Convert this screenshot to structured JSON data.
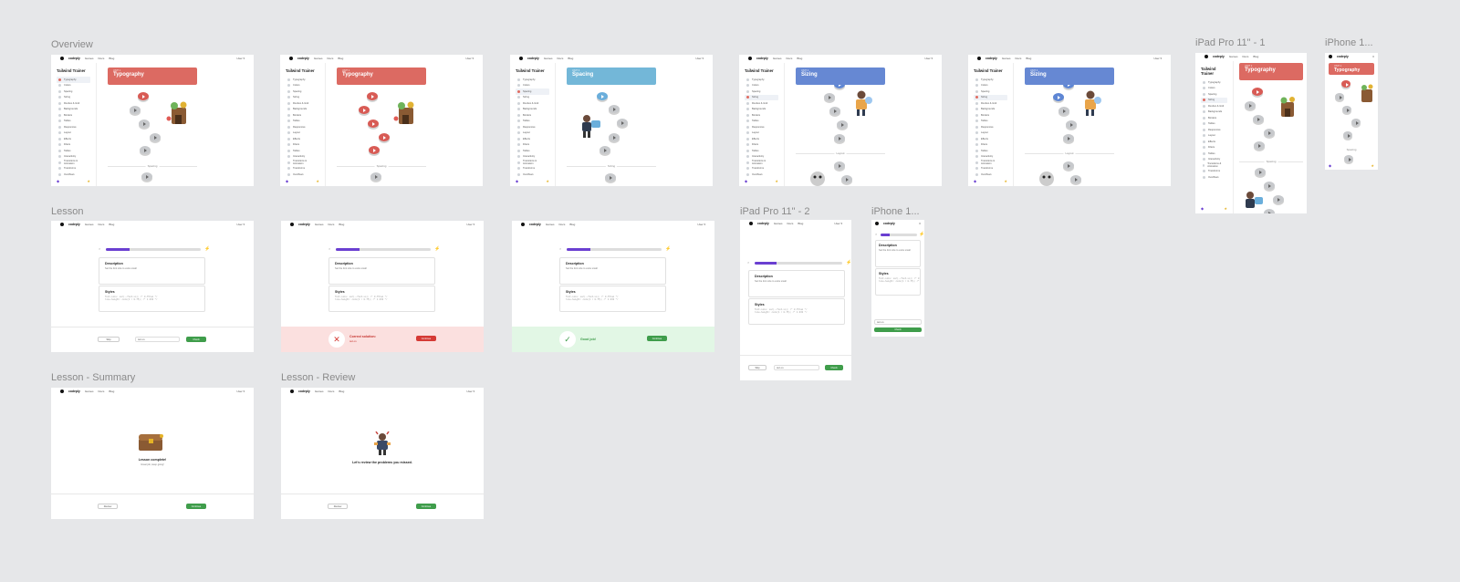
{
  "section_labels": {
    "overview": "Overview",
    "ipad1": "iPad Pro 11\" - 1",
    "iphone1": "iPhone 1...",
    "lesson": "Lesson",
    "ipad2": "iPad Pro 11\" - 2",
    "iphone2": "iPhone 1...",
    "summary": "Lesson - Summary",
    "review": "Lesson - Review"
  },
  "nav": {
    "brand": "codeply",
    "links": [
      "Games",
      "Docs",
      "Blog"
    ],
    "account": "User ▾"
  },
  "sidebar": {
    "title": "Tailwind Trainer",
    "items": [
      "Typography",
      "Colors",
      "Spacing",
      "Sizing",
      "Flexbox & Grid",
      "Backgrounds",
      "Borders",
      "Tables",
      "Responsive",
      "Layout",
      "Effects",
      "Filters",
      "Tables",
      "Interactivity",
      "Transitions & Animation",
      "Transforms",
      "Overflows"
    ],
    "streak": "4",
    "trophy": "🏆"
  },
  "units": {
    "u1": {
      "unit": "UNIT 1",
      "title": "Typography",
      "color": "#dc6a62"
    },
    "u3": {
      "unit": "UNIT 3",
      "title": "Spacing",
      "color": "#73b7d8"
    },
    "u4": {
      "unit": "UNIT 4",
      "title": "Sizing",
      "color": "#6688d3"
    }
  },
  "section_separators": {
    "spacing": "Spacing",
    "sizing": "Sizing",
    "layout": "Layout"
  },
  "lesson": {
    "description_h": "Description",
    "description_b": "Set the font size to extra small",
    "styles_h": "Styles",
    "code": "font-size: var(--font-xs); /* 0.75rem */\nline-height: calc(1 / 0.75); /* 1.333 */",
    "skip": "Skip",
    "input_value": "text-xs",
    "check": "Check",
    "progress": 0.25,
    "correct_title": "Correct solution:",
    "correct_sol": "text-xs",
    "continue": "Continue",
    "good_job": "Good job!"
  },
  "summary": {
    "title": "Lesson complete!",
    "subtitle": "Great job, keep going!",
    "review": "Review",
    "continue": "Continue"
  },
  "review": {
    "title": "Let's review the problems you missed.",
    "review": "Review",
    "continue": "Continue"
  }
}
